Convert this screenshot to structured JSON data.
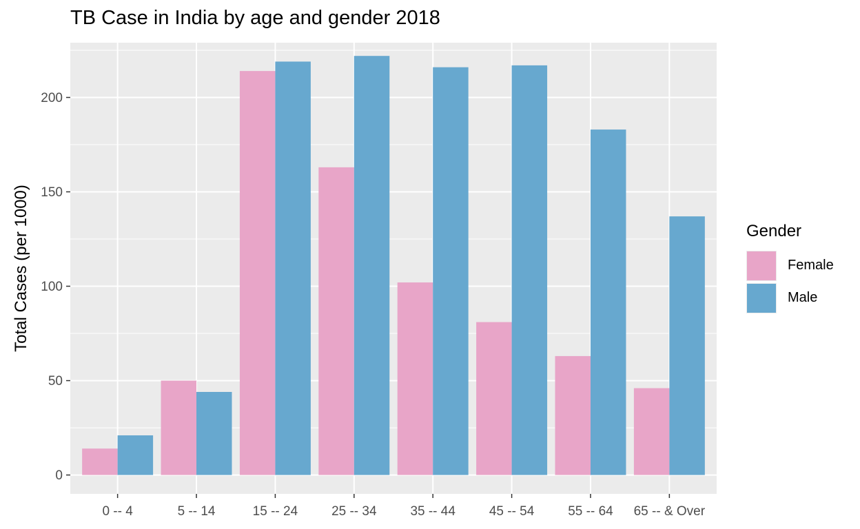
{
  "chart_data": {
    "type": "bar",
    "title": "TB Case in India by age and gender 2018",
    "xlabel": "",
    "ylabel": "Total Cases (per 1000)",
    "categories": [
      "0 -- 4",
      "5 -- 14",
      "15 -- 24",
      "25 -- 34",
      "35 -- 44",
      "45 -- 54",
      "55 -- 64",
      "65 -- & Over"
    ],
    "series": [
      {
        "name": "Female",
        "color": "#e8a5c8",
        "values": [
          14,
          50,
          214,
          163,
          102,
          81,
          63,
          46
        ]
      },
      {
        "name": "Male",
        "color": "#67a8cf",
        "values": [
          21,
          44,
          219,
          222,
          216,
          217,
          183,
          137
        ]
      }
    ],
    "ylim": [
      -10,
      229
    ],
    "yticks": [
      0,
      50,
      100,
      150,
      200
    ],
    "grid": true,
    "panel_background": "#ebebeb",
    "legend": {
      "title": "Gender",
      "position": "right"
    }
  }
}
